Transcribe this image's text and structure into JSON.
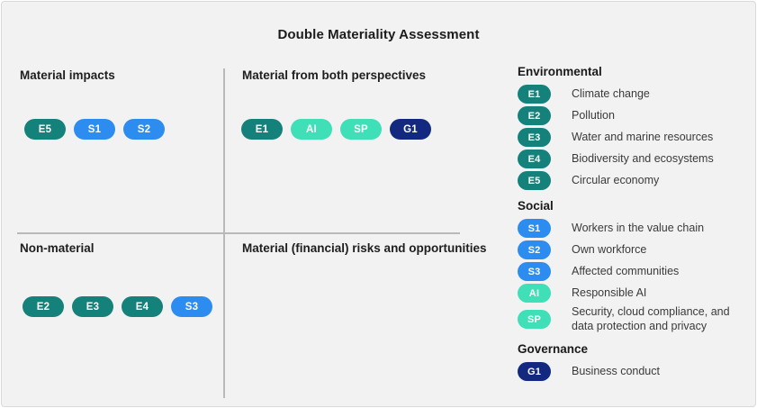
{
  "title": "Double Materiality Assessment",
  "colors": {
    "teal": "#14817A",
    "blue": "#2D8CEF",
    "mint": "#3FDFB7",
    "navy": "#13297F"
  },
  "quadrants": [
    {
      "title": "Material impacts",
      "pills": [
        {
          "label": "E5",
          "color": "teal"
        },
        {
          "label": "S1",
          "color": "blue"
        },
        {
          "label": "S2",
          "color": "blue"
        }
      ]
    },
    {
      "title": "Material from both perspectives",
      "pills": [
        {
          "label": "E1",
          "color": "teal"
        },
        {
          "label": "AI",
          "color": "mint"
        },
        {
          "label": "SP",
          "color": "mint"
        },
        {
          "label": "G1",
          "color": "navy"
        }
      ]
    },
    {
      "title": "Non-material",
      "pills": [
        {
          "label": "E2",
          "color": "teal"
        },
        {
          "label": "E3",
          "color": "teal"
        },
        {
          "label": "E4",
          "color": "teal"
        },
        {
          "label": "S3",
          "color": "blue"
        }
      ]
    },
    {
      "title": "Material (financial) risks and opportunities",
      "pills": []
    }
  ],
  "legend": {
    "sections": [
      {
        "header": "Environmental",
        "items": [
          {
            "code": "E1",
            "color": "teal",
            "label": "Climate change"
          },
          {
            "code": "E2",
            "color": "teal",
            "label": "Pollution"
          },
          {
            "code": "E3",
            "color": "teal",
            "label": "Water and marine resources"
          },
          {
            "code": "E4",
            "color": "teal",
            "label": "Biodiversity and ecosystems"
          },
          {
            "code": "E5",
            "color": "teal",
            "label": "Circular economy"
          }
        ]
      },
      {
        "header": "Social",
        "items": [
          {
            "code": "S1",
            "color": "blue",
            "label": "Workers in the value chain"
          },
          {
            "code": "S2",
            "color": "blue",
            "label": "Own workforce"
          },
          {
            "code": "S3",
            "color": "blue",
            "label": "Affected communities"
          },
          {
            "code": "AI",
            "color": "mint",
            "label": "Responsible AI"
          },
          {
            "code": "SP",
            "color": "mint",
            "label": "Security, cloud compliance, and data protection and privacy"
          }
        ]
      },
      {
        "header": "Governance",
        "items": [
          {
            "code": "G1",
            "color": "navy",
            "label": "Business conduct"
          }
        ]
      }
    ]
  }
}
